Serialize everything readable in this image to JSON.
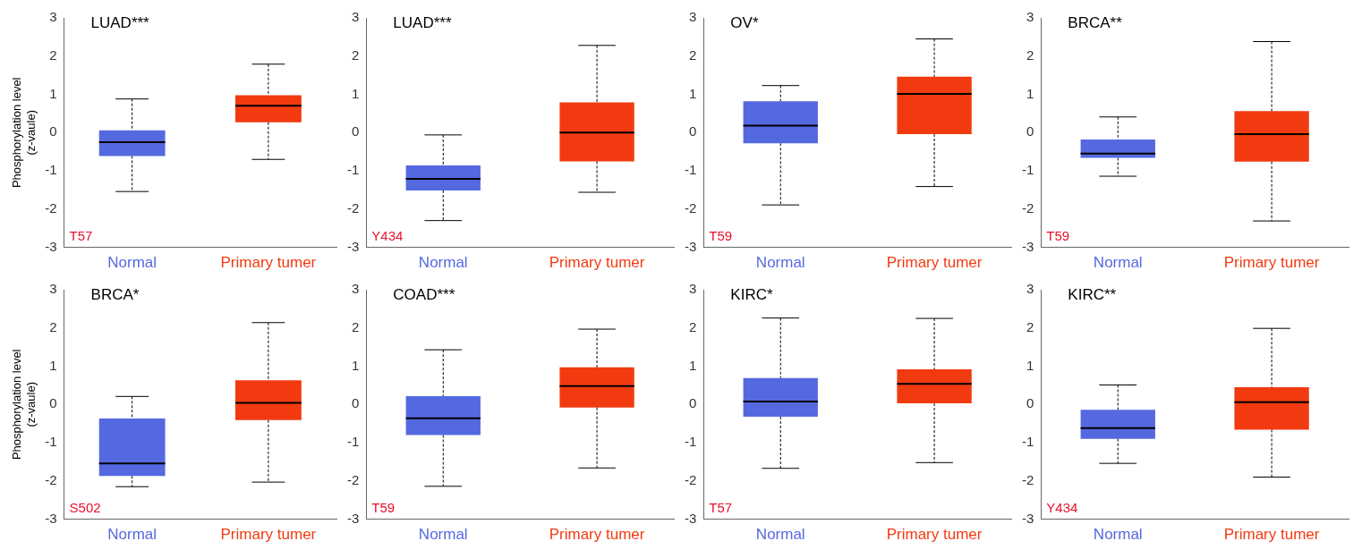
{
  "chart_data": [
    {
      "type": "box",
      "title": "LUAD***",
      "ylabel": "Phosphorylation level\n(z-vaule)",
      "categories": [
        "Normal",
        "Primary tumer"
      ],
      "colors": [
        "#5469e0",
        "#f23a10"
      ],
      "ylim": [
        -3,
        3
      ],
      "yticks": [
        -3,
        -2,
        -1,
        0,
        1,
        2,
        3
      ],
      "annotations": [
        "T57"
      ],
      "boxes": [
        {
          "low": -1.54,
          "q1": -0.61,
          "median": -0.25,
          "q3": 0.06,
          "high": 0.88
        },
        {
          "low": -0.7,
          "q1": 0.27,
          "median": 0.7,
          "q3": 0.98,
          "high": 1.79
        }
      ]
    },
    {
      "type": "box",
      "title": "LUAD***",
      "categories": [
        "Normal",
        "Primary tumer"
      ],
      "colors": [
        "#5469e0",
        "#f23a10"
      ],
      "ylim": [
        -3,
        3
      ],
      "yticks": [
        -3,
        -2,
        -1,
        0,
        1,
        2,
        3
      ],
      "annotations": [
        "Y434"
      ],
      "boxes": [
        {
          "low": -2.3,
          "q1": -1.51,
          "median": -1.21,
          "q3": -0.86,
          "high": -0.06
        },
        {
          "low": -1.56,
          "q1": -0.75,
          "median": 0,
          "q3": 0.79,
          "high": 2.28
        }
      ]
    },
    {
      "type": "box",
      "title": "OV*",
      "categories": [
        "Normal",
        "Primary tumer"
      ],
      "colors": [
        "#5469e0",
        "#f23a10"
      ],
      "ylim": [
        -3,
        3
      ],
      "yticks": [
        -3,
        -2,
        -1,
        0,
        1,
        2,
        3
      ],
      "annotations": [
        "T59"
      ],
      "boxes": [
        {
          "low": -1.89,
          "q1": -0.28,
          "median": 0.18,
          "q3": 0.82,
          "high": 1.23
        },
        {
          "low": -1.41,
          "q1": -0.04,
          "median": 1.01,
          "q3": 1.46,
          "high": 2.45
        }
      ]
    },
    {
      "type": "box",
      "title": "BRCA**",
      "categories": [
        "Normal",
        "Primary tumer"
      ],
      "colors": [
        "#5469e0",
        "#f23a10"
      ],
      "ylim": [
        -3,
        3
      ],
      "yticks": [
        -3,
        -2,
        -1,
        0,
        1,
        2,
        3
      ],
      "annotations": [
        "T59"
      ],
      "boxes": [
        {
          "low": -1.14,
          "q1": -0.66,
          "median": -0.55,
          "q3": -0.18,
          "high": 0.41
        },
        {
          "low": -2.31,
          "q1": -0.76,
          "median": -0.04,
          "q3": 0.56,
          "high": 2.38
        }
      ]
    },
    {
      "type": "box",
      "title": "BRCA*",
      "ylabel": "Phosphorylation level\n(z-vaule)",
      "categories": [
        "Normal",
        "Primary tumer"
      ],
      "colors": [
        "#5469e0",
        "#f23a10"
      ],
      "ylim": [
        -3,
        3
      ],
      "yticks": [
        -3,
        -2,
        -1,
        0,
        1,
        2,
        3
      ],
      "annotations": [
        "S502"
      ],
      "boxes": [
        {
          "low": -2.15,
          "q1": -1.87,
          "median": -1.54,
          "q3": -0.37,
          "high": 0.21
        },
        {
          "low": -2.03,
          "q1": -0.41,
          "median": 0.04,
          "q3": 0.63,
          "high": 2.14
        }
      ]
    },
    {
      "type": "box",
      "title": "COAD***",
      "categories": [
        "Normal",
        "Primary tumer"
      ],
      "colors": [
        "#5469e0",
        "#f23a10"
      ],
      "ylim": [
        -3,
        3
      ],
      "yticks": [
        -3,
        -2,
        -1,
        0,
        1,
        2,
        3
      ],
      "annotations": [
        "T59"
      ],
      "boxes": [
        {
          "low": -2.14,
          "q1": -0.8,
          "median": -0.36,
          "q3": 0.22,
          "high": 1.43
        },
        {
          "low": -1.66,
          "q1": -0.08,
          "median": 0.48,
          "q3": 0.97,
          "high": 1.97
        }
      ]
    },
    {
      "type": "box",
      "title": "KIRC*",
      "categories": [
        "Normal",
        "Primary tumer"
      ],
      "colors": [
        "#5469e0",
        "#f23a10"
      ],
      "ylim": [
        -3,
        3
      ],
      "yticks": [
        -3,
        -2,
        -1,
        0,
        1,
        2,
        3
      ],
      "annotations": [
        "T57"
      ],
      "boxes": [
        {
          "low": -1.67,
          "q1": -0.32,
          "median": 0.08,
          "q3": 0.69,
          "high": 2.26
        },
        {
          "low": -1.52,
          "q1": 0.03,
          "median": 0.54,
          "q3": 0.92,
          "high": 2.25
        }
      ]
    },
    {
      "type": "box",
      "title": "KIRC**",
      "categories": [
        "Normal",
        "Primary tumer"
      ],
      "colors": [
        "#5469e0",
        "#f23a10"
      ],
      "ylim": [
        -3,
        3
      ],
      "yticks": [
        -3,
        -2,
        -1,
        0,
        1,
        2,
        3
      ],
      "annotations": [
        "Y434"
      ],
      "boxes": [
        {
          "low": -1.54,
          "q1": -0.9,
          "median": -0.62,
          "q3": -0.14,
          "high": 0.51
        },
        {
          "low": -1.9,
          "q1": -0.66,
          "median": 0.06,
          "q3": 0.45,
          "high": 1.99
        }
      ]
    }
  ]
}
